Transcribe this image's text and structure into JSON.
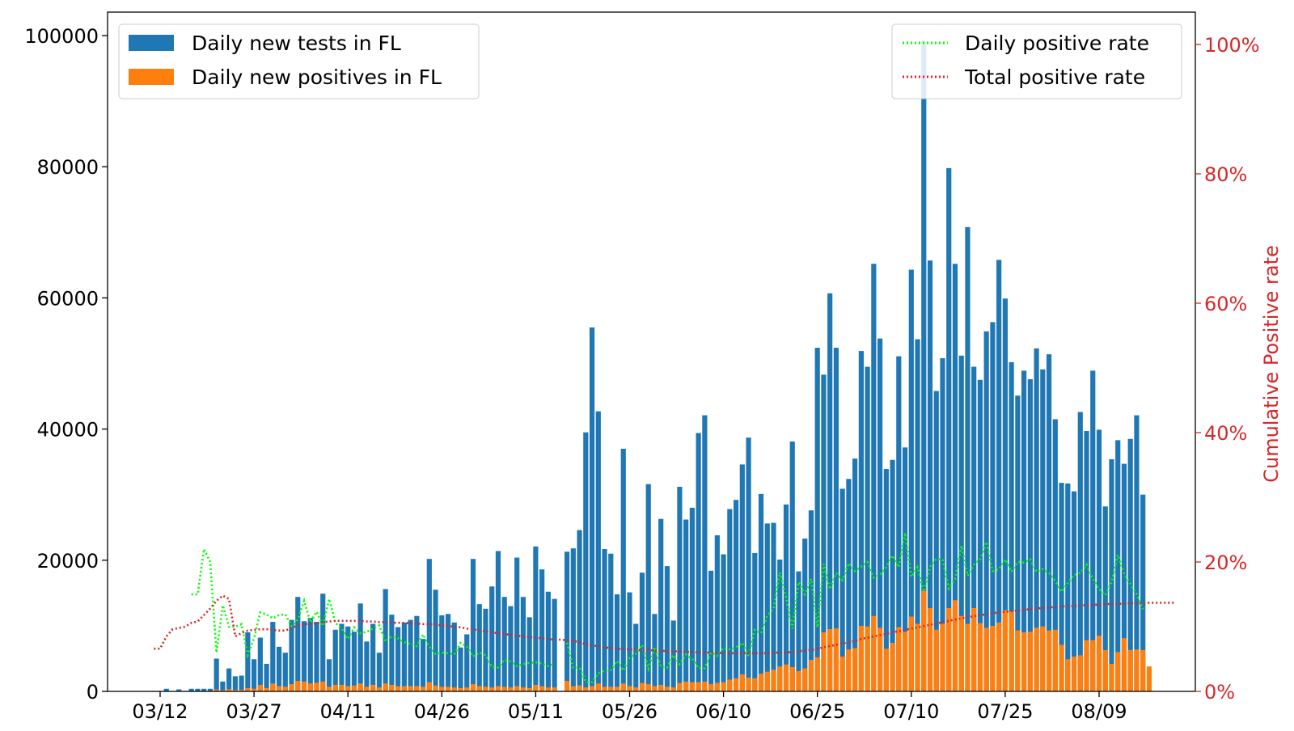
{
  "chart_data": {
    "type": "bar",
    "start_date": "2020-03-11",
    "x_tick_labels": [
      "03/12",
      "03/27",
      "04/11",
      "04/26",
      "05/11",
      "05/26",
      "06/10",
      "06/25",
      "07/10",
      "07/25",
      "08/09"
    ],
    "ylim": [
      0,
      103500
    ],
    "y_ticks": [
      0,
      20000,
      40000,
      60000,
      80000,
      100000
    ],
    "y_tick_labels": [
      "0",
      "20000",
      "40000",
      "60000",
      "80000",
      "100000"
    ],
    "y2lim": [
      0,
      1.035
    ],
    "y2_ticks": [
      0,
      0.2,
      0.4,
      0.6,
      0.8,
      1.0
    ],
    "y2_tick_labels": [
      "0%",
      "20%",
      "40%",
      "60%",
      "80%",
      "100%"
    ],
    "y2label": "Cumulative Positive rate",
    "y2_color": "#d62728",
    "grid": false,
    "legend_left": [
      "Daily new tests in FL",
      "Daily new positives in FL"
    ],
    "legend_right": [
      "Daily positive rate",
      "Total positive rate"
    ],
    "colors": {
      "tests": "#1f77b4",
      "positives": "#ff7f0e",
      "daily_rate": "#00ff00",
      "total_rate": "#d62728"
    },
    "series": [
      {
        "name": "Daily new tests in FL",
        "values": [
          0,
          0,
          400,
          0,
          300,
          0,
          400,
          400,
          400,
          400,
          5000,
          1500,
          3500,
          2300,
          2400,
          9000,
          4900,
          8200,
          4200,
          10600,
          6800,
          5900,
          10900,
          14400,
          10700,
          11200,
          10600,
          14900,
          4900,
          9400,
          10300,
          9900,
          9100,
          13400,
          7600,
          10300,
          5900,
          15600,
          11700,
          9800,
          10500,
          10900,
          11500,
          8000,
          20200,
          15500,
          11600,
          11800,
          10500,
          6700,
          8700,
          20200,
          13300,
          12600,
          16000,
          21400,
          14400,
          13000,
          20400,
          14400,
          11300,
          22100,
          18600,
          15200,
          14100,
          0,
          21300,
          21800,
          24600,
          39500,
          55500,
          42700,
          21700,
          21000,
          14800,
          37000,
          15100,
          10300,
          18100,
          31600,
          11800,
          26300,
          19100,
          10800,
          31200,
          26200,
          28000,
          39400,
          42100,
          18400,
          23800,
          20900,
          27800,
          29200,
          34600,
          38700,
          21100,
          30100,
          25600,
          25700,
          20100,
          28500,
          38100,
          18300,
          23300,
          27600,
          52400,
          48300,
          60700,
          52400,
          30900,
          32400,
          35500,
          51900,
          49500,
          65200,
          53800,
          33900,
          35300,
          51100,
          37200,
          64300,
          53700,
          99200,
          65700,
          45800,
          50800,
          79800,
          65200,
          51200,
          70800,
          49500,
          47500,
          54900,
          56300,
          65800,
          59900,
          50200,
          45100,
          48900,
          47600,
          52300,
          49100,
          51400,
          41500,
          31800,
          31700,
          30500,
          42600,
          39700,
          48900,
          39900,
          28200,
          35400,
          38300,
          34700,
          38500,
          42100,
          30000
        ]
      },
      {
        "name": "Daily new positives in FL",
        "values": [
          0,
          0,
          40,
          0,
          50,
          0,
          60,
          60,
          90,
          80,
          300,
          200,
          350,
          230,
          250,
          500,
          400,
          1000,
          500,
          1200,
          800,
          700,
          1100,
          1600,
          1500,
          1200,
          1300,
          1500,
          700,
          1000,
          1000,
          800,
          900,
          1200,
          700,
          1000,
          600,
          1200,
          1000,
          800,
          800,
          800,
          800,
          700,
          1400,
          900,
          700,
          700,
          600,
          500,
          600,
          1100,
          800,
          700,
          600,
          800,
          700,
          600,
          800,
          600,
          500,
          1000,
          800,
          600,
          600,
          0,
          1600,
          800,
          900,
          600,
          800,
          1200,
          700,
          700,
          700,
          1200,
          800,
          600,
          1300,
          1100,
          800,
          1000,
          700,
          600,
          1300,
          1500,
          1400,
          1400,
          1500,
          1100,
          1300,
          1400,
          1800,
          2000,
          2600,
          2100,
          2000,
          2700,
          3000,
          3300,
          3800,
          4100,
          3700,
          3100,
          3500,
          4800,
          5200,
          9000,
          9500,
          9600,
          5300,
          6400,
          6600,
          10000,
          9900,
          11500,
          9700,
          6500,
          7400,
          9800,
          9100,
          11400,
          10300,
          15300,
          12700,
          9400,
          10300,
          12700,
          13900,
          11500,
          10300,
          12700,
          10400,
          9700,
          10000,
          10500,
          12400,
          12200,
          9300,
          9000,
          9100,
          9700,
          9900,
          9300,
          9400,
          7100,
          4900,
          5300,
          5500,
          7800,
          7800,
          8500,
          6300,
          4200,
          6000,
          8100,
          6300,
          6400,
          6300,
          3800
        ]
      }
    ],
    "lines": [
      {
        "name": "Daily positive rate",
        "values": [
          null,
          null,
          0.1,
          null,
          0.17,
          null,
          0.15,
          0.15,
          0.22,
          0.2,
          0.06,
          0.133,
          0.1,
          0.1,
          0.104,
          0.056,
          0.082,
          0.122,
          0.119,
          0.113,
          0.118,
          0.119,
          0.101,
          0.111,
          0.14,
          0.107,
          0.123,
          0.101,
          0.143,
          0.106,
          0.097,
          0.081,
          0.099,
          0.09,
          0.092,
          0.097,
          0.102,
          0.077,
          0.085,
          0.082,
          0.076,
          0.073,
          0.07,
          0.088,
          0.069,
          0.058,
          0.06,
          0.059,
          0.057,
          0.075,
          0.069,
          0.054,
          0.06,
          0.056,
          0.038,
          0.037,
          0.049,
          0.046,
          0.039,
          0.042,
          0.044,
          0.045,
          0.043,
          0.039,
          0.043,
          null,
          0.075,
          0.037,
          0.037,
          0.015,
          0.014,
          0.028,
          0.032,
          0.033,
          0.047,
          0.032,
          0.053,
          0.058,
          0.072,
          0.035,
          0.068,
          0.038,
          0.037,
          0.056,
          0.042,
          0.057,
          0.05,
          0.036,
          0.036,
          0.06,
          0.055,
          0.067,
          0.065,
          0.068,
          0.075,
          0.054,
          0.095,
          0.09,
          0.117,
          0.128,
          0.184,
          0.145,
          0.097,
          0.169,
          0.15,
          0.174,
          0.099,
          0.197,
          0.158,
          0.183,
          0.172,
          0.198,
          0.186,
          0.193,
          0.2,
          0.176,
          0.18,
          0.192,
          0.21,
          0.192,
          0.245,
          0.177,
          0.192,
          0.154,
          0.193,
          0.205,
          0.203,
          0.159,
          0.174,
          0.225,
          0.179,
          0.196,
          0.204,
          0.231,
          0.186,
          0.189,
          0.204,
          0.185,
          0.2,
          0.199,
          0.204,
          0.185,
          0.189,
          0.183,
          0.171,
          0.154,
          0.167,
          0.18,
          0.183,
          0.196,
          0.174,
          0.158,
          0.149,
          0.169,
          0.211,
          0.182,
          0.166,
          0.15,
          0.127
        ]
      },
      {
        "name": "Total positive rate",
        "values": [
          0.066,
          0.066,
          0.085,
          0.096,
          0.098,
          0.1,
          0.106,
          0.108,
          0.118,
          0.128,
          0.14,
          0.148,
          0.143,
          0.085,
          0.09,
          0.094,
          0.095,
          0.096,
          0.096,
          0.095,
          0.094,
          0.094,
          0.098,
          0.102,
          0.104,
          0.104,
          0.105,
          0.107,
          0.108,
          0.109,
          0.109,
          0.109,
          0.109,
          0.109,
          0.108,
          0.108,
          0.107,
          0.107,
          0.106,
          0.106,
          0.106,
          0.105,
          0.105,
          0.104,
          0.104,
          0.103,
          0.102,
          0.101,
          0.1,
          0.099,
          0.097,
          0.096,
          0.094,
          0.093,
          0.091,
          0.09,
          0.089,
          0.087,
          0.086,
          0.085,
          0.084,
          0.083,
          0.082,
          0.081,
          0.08,
          0.08,
          0.079,
          0.078,
          0.076,
          0.073,
          0.071,
          0.07,
          0.068,
          0.067,
          0.066,
          0.065,
          0.065,
          0.064,
          0.064,
          0.064,
          0.063,
          0.063,
          0.062,
          0.062,
          0.062,
          0.061,
          0.061,
          0.06,
          0.06,
          0.06,
          0.06,
          0.059,
          0.059,
          0.059,
          0.059,
          0.059,
          0.059,
          0.059,
          0.059,
          0.06,
          0.06,
          0.06,
          0.061,
          0.062,
          0.063,
          0.064,
          0.066,
          0.068,
          0.07,
          0.072,
          0.074,
          0.076,
          0.078,
          0.081,
          0.083,
          0.085,
          0.087,
          0.089,
          0.091,
          0.093,
          0.095,
          0.097,
          0.099,
          0.101,
          0.103,
          0.105,
          0.107,
          0.109,
          0.111,
          0.113,
          0.115,
          0.116,
          0.118,
          0.119,
          0.121,
          0.122,
          0.123,
          0.124,
          0.125,
          0.126,
          0.127,
          0.128,
          0.129,
          0.13,
          0.13,
          0.131,
          0.132,
          0.132,
          0.133,
          0.133,
          0.134,
          0.134,
          0.135,
          0.135,
          0.135,
          0.136,
          0.136,
          0.136,
          0.136,
          0.137,
          0.137,
          0.137,
          0.137,
          0.137
        ]
      }
    ]
  }
}
